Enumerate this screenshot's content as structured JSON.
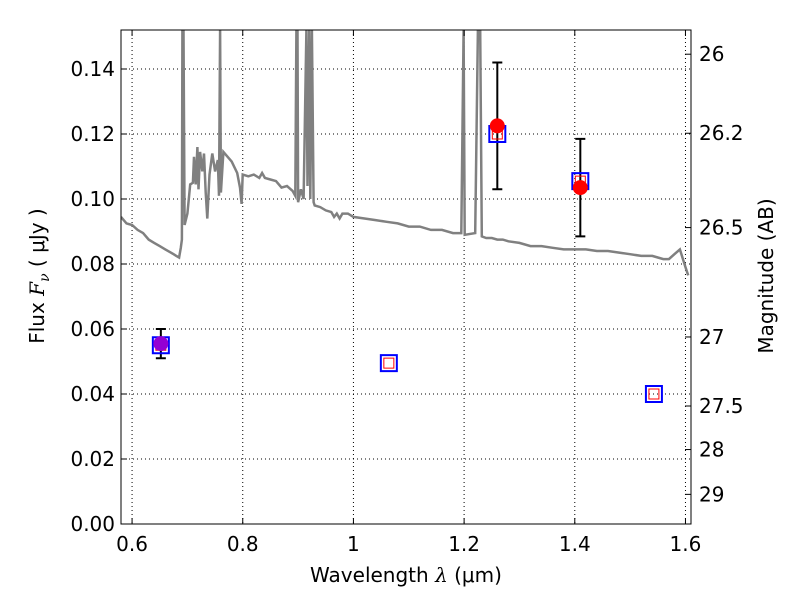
{
  "chart_data": {
    "type": "scatter",
    "xlabel_text": "Wavelength",
    "xlabel_symbol": "λ",
    "xlabel_unit": "μm",
    "ylabel_text": "Flux",
    "ylabel_symbol": "F",
    "ylabel_subscript": "ν",
    "ylabel_unit": "μJy",
    "y2label": "Magnitude (AB)",
    "xlim": [
      0.58,
      1.61
    ],
    "ylim": [
      0.0,
      0.152
    ],
    "xticks": [
      0.6,
      0.8,
      1.0,
      1.2,
      1.4,
      1.6
    ],
    "xtick_labels": [
      "0.6",
      "0.8",
      "1",
      "1.2",
      "1.4",
      "1.6"
    ],
    "yticks": [
      0.0,
      0.02,
      0.04,
      0.06,
      0.08,
      0.1,
      0.12,
      0.14
    ],
    "ytick_labels": [
      "0.00",
      "0.02",
      "0.04",
      "0.06",
      "0.08",
      "0.10",
      "0.12",
      "0.14"
    ],
    "y2ticks": [
      {
        "label": "26",
        "value": 26.0
      },
      {
        "label": "26.2",
        "value": 26.2
      },
      {
        "label": "26.5",
        "value": 26.5
      },
      {
        "label": "27",
        "value": 27.0
      },
      {
        "label": "27.5",
        "value": 27.5
      },
      {
        "label": "28",
        "value": 28.0
      },
      {
        "label": "29",
        "value": 29.0
      }
    ],
    "grid": true,
    "colors": {
      "template": "#808080",
      "observed": "#ff0000",
      "observed_purple": "#9400d3",
      "model_box": "#0000ff",
      "model_inner": "#ff0000",
      "error": "#000000"
    },
    "observed": [
      {
        "x": 0.652,
        "y": 0.0555,
        "err": 0.0045,
        "color": "observed_purple"
      },
      {
        "x": 1.26,
        "y": 0.1225,
        "err": 0.0195,
        "color": "observed"
      },
      {
        "x": 1.41,
        "y": 0.1035,
        "err": 0.015,
        "color": "observed"
      }
    ],
    "model": [
      {
        "x": 0.652,
        "y": 0.055
      },
      {
        "x": 1.064,
        "y": 0.0495
      },
      {
        "x": 1.26,
        "y": 0.12
      },
      {
        "x": 1.41,
        "y": 0.1055
      },
      {
        "x": 1.543,
        "y": 0.04
      }
    ],
    "template_spectrum": [
      [
        0.58,
        0.0945
      ],
      [
        0.59,
        0.0925
      ],
      [
        0.6,
        0.092
      ],
      [
        0.61,
        0.0905
      ],
      [
        0.62,
        0.0895
      ],
      [
        0.63,
        0.0875
      ],
      [
        0.64,
        0.0865
      ],
      [
        0.65,
        0.0855
      ],
      [
        0.66,
        0.0845
      ],
      [
        0.67,
        0.0835
      ],
      [
        0.675,
        0.083
      ],
      [
        0.68,
        0.0825
      ],
      [
        0.685,
        0.082
      ],
      [
        0.688,
        0.085
      ],
      [
        0.69,
        0.0875
      ],
      [
        0.691,
        0.152
      ],
      [
        0.693,
        0.152
      ],
      [
        0.695,
        0.092
      ],
      [
        0.7,
        0.0955
      ],
      [
        0.705,
        0.1045
      ],
      [
        0.71,
        0.105
      ],
      [
        0.712,
        0.113
      ],
      [
        0.715,
        0.1045
      ],
      [
        0.718,
        0.116
      ],
      [
        0.72,
        0.103
      ],
      [
        0.723,
        0.1145
      ],
      [
        0.727,
        0.1085
      ],
      [
        0.73,
        0.114
      ],
      [
        0.733,
        0.102
      ],
      [
        0.736,
        0.094
      ],
      [
        0.74,
        0.1075
      ],
      [
        0.745,
        0.114
      ],
      [
        0.75,
        0.1085
      ],
      [
        0.755,
        0.112
      ],
      [
        0.757,
        0.101
      ],
      [
        0.759,
        0.152
      ],
      [
        0.7605,
        0.102
      ],
      [
        0.765,
        0.1145
      ],
      [
        0.77,
        0.1135
      ],
      [
        0.78,
        0.1115
      ],
      [
        0.79,
        0.108
      ],
      [
        0.795,
        0.1035
      ],
      [
        0.798,
        0.0985
      ],
      [
        0.8,
        0.1075
      ],
      [
        0.81,
        0.107
      ],
      [
        0.82,
        0.1075
      ],
      [
        0.83,
        0.1065
      ],
      [
        0.835,
        0.108
      ],
      [
        0.84,
        0.1065
      ],
      [
        0.85,
        0.106
      ],
      [
        0.86,
        0.1055
      ],
      [
        0.87,
        0.1035
      ],
      [
        0.88,
        0.104
      ],
      [
        0.89,
        0.1025
      ],
      [
        0.895,
        0.101
      ],
      [
        0.897,
        0.152
      ],
      [
        0.899,
        0.152
      ],
      [
        0.9,
        0.099
      ],
      [
        0.905,
        0.103
      ],
      [
        0.91,
        0.1
      ],
      [
        0.915,
        0.152
      ],
      [
        0.917,
        0.104
      ],
      [
        0.92,
        0.152
      ],
      [
        0.922,
        0.1
      ],
      [
        0.925,
        0.152
      ],
      [
        0.928,
        0.099
      ],
      [
        0.93,
        0.098
      ],
      [
        0.94,
        0.0975
      ],
      [
        0.95,
        0.0965
      ],
      [
        0.96,
        0.096
      ],
      [
        0.965,
        0.0945
      ],
      [
        0.97,
        0.0955
      ],
      [
        0.975,
        0.094
      ],
      [
        0.98,
        0.0955
      ],
      [
        0.99,
        0.0955
      ],
      [
        1.0,
        0.0945
      ],
      [
        1.02,
        0.094
      ],
      [
        1.04,
        0.0935
      ],
      [
        1.06,
        0.093
      ],
      [
        1.08,
        0.0925
      ],
      [
        1.1,
        0.0915
      ],
      [
        1.12,
        0.0915
      ],
      [
        1.14,
        0.0905
      ],
      [
        1.16,
        0.0905
      ],
      [
        1.18,
        0.0895
      ],
      [
        1.195,
        0.0895
      ],
      [
        1.199,
        0.152
      ],
      [
        1.201,
        0.089
      ],
      [
        1.22,
        0.0895
      ],
      [
        1.225,
        0.152
      ],
      [
        1.229,
        0.152
      ],
      [
        1.232,
        0.0885
      ],
      [
        1.24,
        0.088
      ],
      [
        1.25,
        0.088
      ],
      [
        1.26,
        0.0875
      ],
      [
        1.27,
        0.0875
      ],
      [
        1.28,
        0.087
      ],
      [
        1.3,
        0.0865
      ],
      [
        1.32,
        0.0855
      ],
      [
        1.34,
        0.0855
      ],
      [
        1.36,
        0.085
      ],
      [
        1.38,
        0.0845
      ],
      [
        1.4,
        0.0845
      ],
      [
        1.42,
        0.0845
      ],
      [
        1.44,
        0.084
      ],
      [
        1.46,
        0.084
      ],
      [
        1.48,
        0.0835
      ],
      [
        1.5,
        0.083
      ],
      [
        1.52,
        0.0825
      ],
      [
        1.54,
        0.0825
      ],
      [
        1.55,
        0.082
      ],
      [
        1.56,
        0.0815
      ],
      [
        1.57,
        0.0815
      ],
      [
        1.58,
        0.083
      ],
      [
        1.59,
        0.0845
      ],
      [
        1.6,
        0.079
      ],
      [
        1.605,
        0.0765
      ]
    ]
  }
}
